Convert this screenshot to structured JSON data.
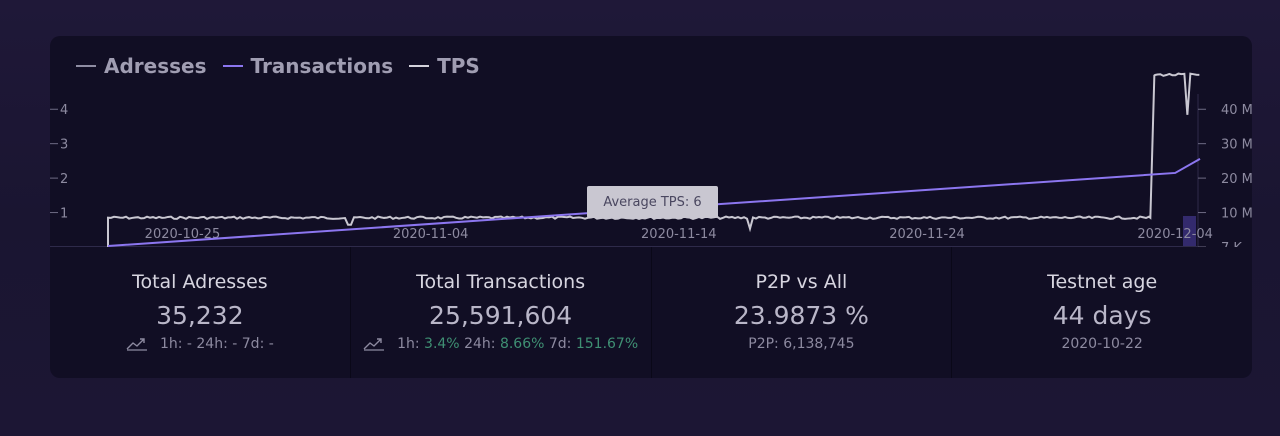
{
  "legend": [
    {
      "label": "Adresses",
      "color": "#8f8da3"
    },
    {
      "label": "Transactions",
      "color": "#8c76f0"
    },
    {
      "label": "TPS",
      "color": "#d4d2dc"
    }
  ],
  "tooltip": "Average TPS: 6",
  "chart_data": {
    "type": "line",
    "x_ticks": [
      "2020-10-25",
      "2020-11-04",
      "2020-11-14",
      "2020-11-24",
      "2020-12-04"
    ],
    "y_left_ticks": [
      "1",
      "2",
      "3",
      "4"
    ],
    "y_right_ticks": [
      "7 K",
      "10 M",
      "20 M",
      "30 M",
      "40 M"
    ],
    "series": [
      {
        "name": "Transactions",
        "axis": "right",
        "color": "#8c76f0",
        "x": [
          "2020-10-22",
          "2020-12-04",
          "2020-12-05"
        ],
        "values": [
          0.007,
          21.5,
          25.6
        ]
      },
      {
        "name": "TPS",
        "axis": "left",
        "color": "#c9c7d1",
        "x": [
          "2020-10-22",
          "2020-10-22",
          "2020-12-03",
          "2020-12-03",
          "2020-12-05"
        ],
        "values": [
          0,
          0.85,
          0.85,
          5,
          5
        ]
      }
    ],
    "ylim_left": [
      0,
      4.5
    ],
    "ylim_right": [
      0,
      45
    ]
  },
  "stats": [
    {
      "title": "Total Adresses",
      "value": "35,232",
      "has_icon": true,
      "sub": [
        {
          "text": "1h: ",
          "pos": false
        },
        {
          "text": "-",
          "pos": false
        },
        {
          "text": " 24h: ",
          "pos": false
        },
        {
          "text": "-",
          "pos": false
        },
        {
          "text": " 7d: ",
          "pos": false
        },
        {
          "text": "-",
          "pos": false
        }
      ]
    },
    {
      "title": "Total Transactions",
      "value": "25,591,604",
      "has_icon": true,
      "sub": [
        {
          "text": "1h: ",
          "pos": false
        },
        {
          "text": "3.4%",
          "pos": true
        },
        {
          "text": " 24h: ",
          "pos": false
        },
        {
          "text": "8.66%",
          "pos": true
        },
        {
          "text": " 7d: ",
          "pos": false
        },
        {
          "text": "151.67%",
          "pos": true
        }
      ]
    },
    {
      "title": "P2P vs All",
      "value": "23.9873 %",
      "has_icon": false,
      "sub": [
        {
          "text": "P2P: 6,138,745",
          "pos": false
        }
      ]
    },
    {
      "title": "Testnet age",
      "value": "44 days",
      "has_icon": false,
      "sub": [
        {
          "text": "2020-10-22",
          "pos": false
        }
      ]
    }
  ]
}
